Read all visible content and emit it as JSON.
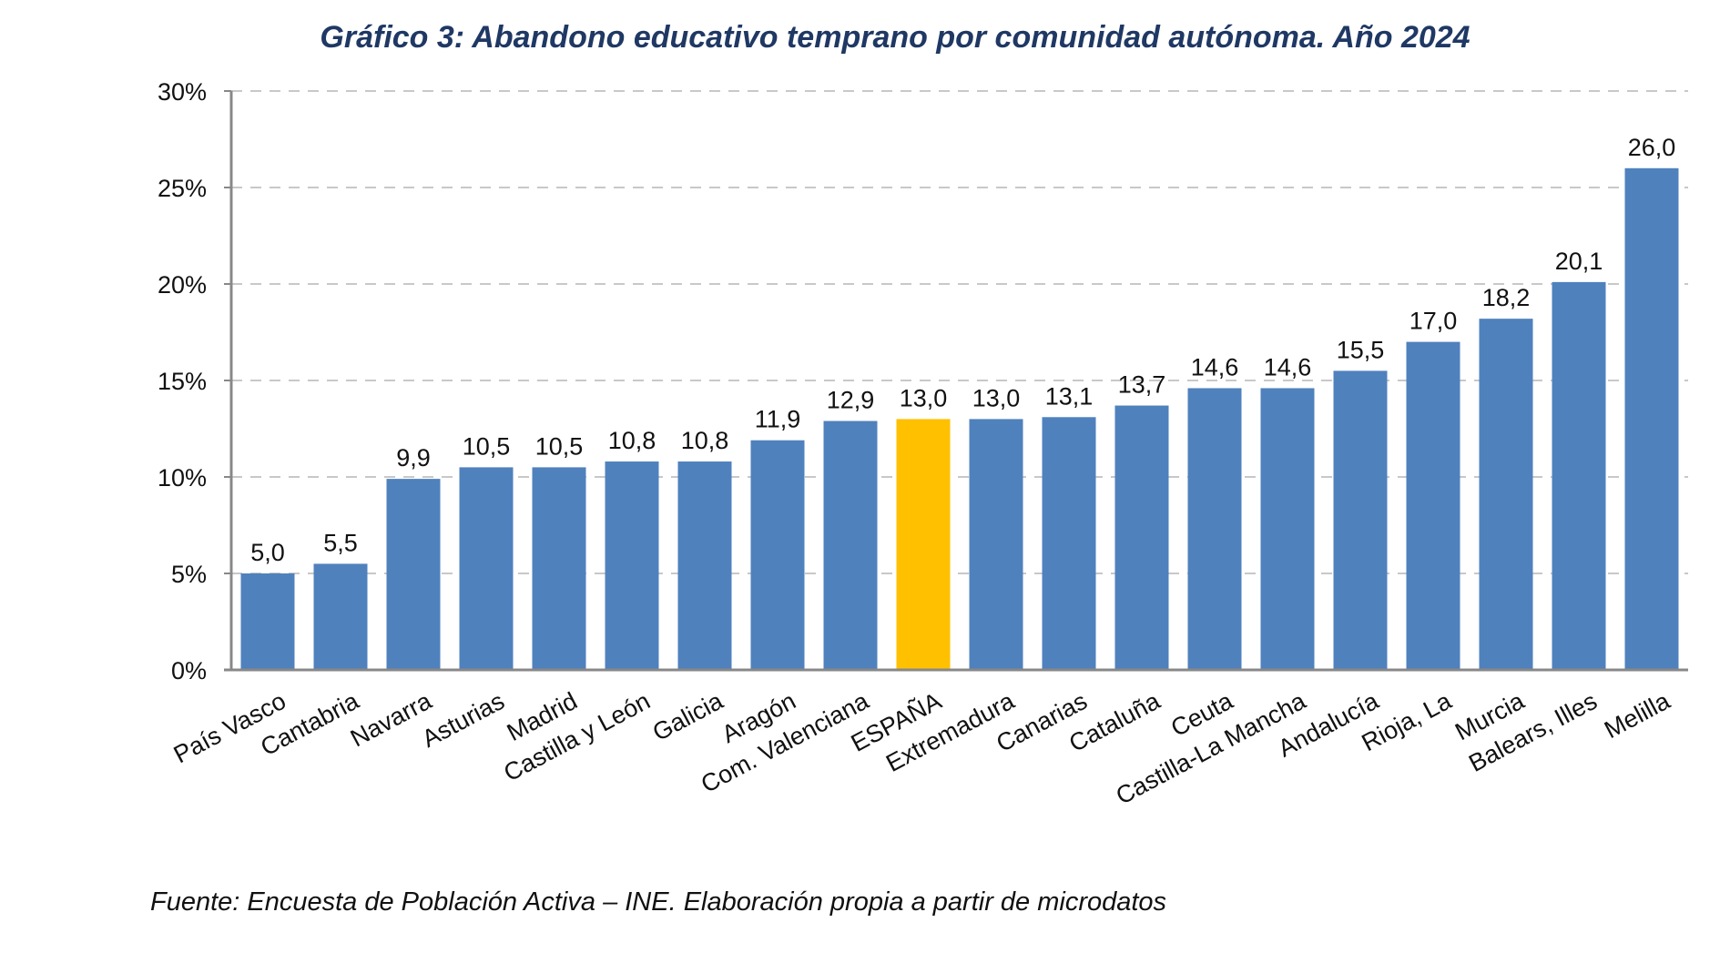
{
  "chart_data": {
    "type": "bar",
    "title": "Gráfico 3: Abandono educativo temprano por comunidad autónoma. Año 2024",
    "xlabel": "",
    "ylabel": "",
    "ylim": [
      0,
      30
    ],
    "yticks": [
      "0%",
      "5%",
      "10%",
      "15%",
      "20%",
      "25%",
      "30%"
    ],
    "grid": true,
    "categories": [
      "País Vasco",
      "Cantabria",
      "Navarra",
      "Asturias",
      "Madrid",
      "Castilla y León",
      "Galicia",
      "Aragón",
      "Com. Valenciana",
      "ESPAÑA",
      "Extremadura",
      "Canarias",
      "Cataluña",
      "Ceuta",
      "Castilla-La Mancha",
      "Andalucía",
      "Rioja, La",
      "Murcia",
      "Balears, Illes",
      "Melilla"
    ],
    "values": [
      5.0,
      5.5,
      9.9,
      10.5,
      10.5,
      10.8,
      10.8,
      11.9,
      12.9,
      13.0,
      13.0,
      13.1,
      13.7,
      14.6,
      14.6,
      15.5,
      17.0,
      18.2,
      20.1,
      26.0
    ],
    "data_labels": [
      "5,0",
      "5,5",
      "9,9",
      "10,5",
      "10,5",
      "10,8",
      "10,8",
      "11,9",
      "12,9",
      "13,0",
      "13,0",
      "13,1",
      "13,7",
      "14,6",
      "14,6",
      "15,5",
      "17,0",
      "18,2",
      "20,1",
      "26,0"
    ],
    "highlight_category": "ESPAÑA",
    "colors": {
      "bar": "#4f81bd",
      "highlight": "#ffc000",
      "grid": "#c8c8c8",
      "title": "#1f3864"
    }
  },
  "footer": "Fuente: Encuesta de Población Activa – INE. Elaboración propia a partir de microdatos"
}
